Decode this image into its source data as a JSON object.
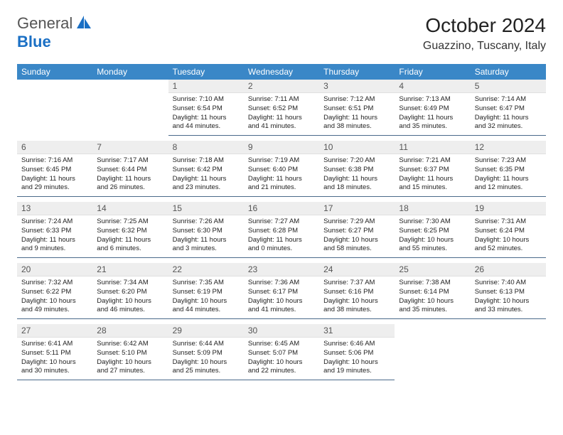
{
  "logo": {
    "text_general": "General",
    "text_blue": "Blue"
  },
  "header": {
    "month_title": "October 2024",
    "location": "Guazzino, Tuscany, Italy"
  },
  "colors": {
    "header_bg": "#3a87c7",
    "header_text": "#ffffff",
    "daynum_bg": "#eeeeee",
    "cell_border": "#4a6a8a",
    "logo_blue": "#1a6fc4"
  },
  "weekdays": [
    "Sunday",
    "Monday",
    "Tuesday",
    "Wednesday",
    "Thursday",
    "Friday",
    "Saturday"
  ],
  "weeks": [
    [
      null,
      null,
      {
        "n": "1",
        "sr": "7:10 AM",
        "ss": "6:54 PM",
        "dl": "11 hours and 44 minutes."
      },
      {
        "n": "2",
        "sr": "7:11 AM",
        "ss": "6:52 PM",
        "dl": "11 hours and 41 minutes."
      },
      {
        "n": "3",
        "sr": "7:12 AM",
        "ss": "6:51 PM",
        "dl": "11 hours and 38 minutes."
      },
      {
        "n": "4",
        "sr": "7:13 AM",
        "ss": "6:49 PM",
        "dl": "11 hours and 35 minutes."
      },
      {
        "n": "5",
        "sr": "7:14 AM",
        "ss": "6:47 PM",
        "dl": "11 hours and 32 minutes."
      }
    ],
    [
      {
        "n": "6",
        "sr": "7:16 AM",
        "ss": "6:45 PM",
        "dl": "11 hours and 29 minutes."
      },
      {
        "n": "7",
        "sr": "7:17 AM",
        "ss": "6:44 PM",
        "dl": "11 hours and 26 minutes."
      },
      {
        "n": "8",
        "sr": "7:18 AM",
        "ss": "6:42 PM",
        "dl": "11 hours and 23 minutes."
      },
      {
        "n": "9",
        "sr": "7:19 AM",
        "ss": "6:40 PM",
        "dl": "11 hours and 21 minutes."
      },
      {
        "n": "10",
        "sr": "7:20 AM",
        "ss": "6:38 PM",
        "dl": "11 hours and 18 minutes."
      },
      {
        "n": "11",
        "sr": "7:21 AM",
        "ss": "6:37 PM",
        "dl": "11 hours and 15 minutes."
      },
      {
        "n": "12",
        "sr": "7:23 AM",
        "ss": "6:35 PM",
        "dl": "11 hours and 12 minutes."
      }
    ],
    [
      {
        "n": "13",
        "sr": "7:24 AM",
        "ss": "6:33 PM",
        "dl": "11 hours and 9 minutes."
      },
      {
        "n": "14",
        "sr": "7:25 AM",
        "ss": "6:32 PM",
        "dl": "11 hours and 6 minutes."
      },
      {
        "n": "15",
        "sr": "7:26 AM",
        "ss": "6:30 PM",
        "dl": "11 hours and 3 minutes."
      },
      {
        "n": "16",
        "sr": "7:27 AM",
        "ss": "6:28 PM",
        "dl": "11 hours and 0 minutes."
      },
      {
        "n": "17",
        "sr": "7:29 AM",
        "ss": "6:27 PM",
        "dl": "10 hours and 58 minutes."
      },
      {
        "n": "18",
        "sr": "7:30 AM",
        "ss": "6:25 PM",
        "dl": "10 hours and 55 minutes."
      },
      {
        "n": "19",
        "sr": "7:31 AM",
        "ss": "6:24 PM",
        "dl": "10 hours and 52 minutes."
      }
    ],
    [
      {
        "n": "20",
        "sr": "7:32 AM",
        "ss": "6:22 PM",
        "dl": "10 hours and 49 minutes."
      },
      {
        "n": "21",
        "sr": "7:34 AM",
        "ss": "6:20 PM",
        "dl": "10 hours and 46 minutes."
      },
      {
        "n": "22",
        "sr": "7:35 AM",
        "ss": "6:19 PM",
        "dl": "10 hours and 44 minutes."
      },
      {
        "n": "23",
        "sr": "7:36 AM",
        "ss": "6:17 PM",
        "dl": "10 hours and 41 minutes."
      },
      {
        "n": "24",
        "sr": "7:37 AM",
        "ss": "6:16 PM",
        "dl": "10 hours and 38 minutes."
      },
      {
        "n": "25",
        "sr": "7:38 AM",
        "ss": "6:14 PM",
        "dl": "10 hours and 35 minutes."
      },
      {
        "n": "26",
        "sr": "7:40 AM",
        "ss": "6:13 PM",
        "dl": "10 hours and 33 minutes."
      }
    ],
    [
      {
        "n": "27",
        "sr": "6:41 AM",
        "ss": "5:11 PM",
        "dl": "10 hours and 30 minutes."
      },
      {
        "n": "28",
        "sr": "6:42 AM",
        "ss": "5:10 PM",
        "dl": "10 hours and 27 minutes."
      },
      {
        "n": "29",
        "sr": "6:44 AM",
        "ss": "5:09 PM",
        "dl": "10 hours and 25 minutes."
      },
      {
        "n": "30",
        "sr": "6:45 AM",
        "ss": "5:07 PM",
        "dl": "10 hours and 22 minutes."
      },
      {
        "n": "31",
        "sr": "6:46 AM",
        "ss": "5:06 PM",
        "dl": "10 hours and 19 minutes."
      },
      null,
      null
    ]
  ],
  "labels": {
    "sunrise": "Sunrise:",
    "sunset": "Sunset:",
    "daylight": "Daylight:"
  }
}
